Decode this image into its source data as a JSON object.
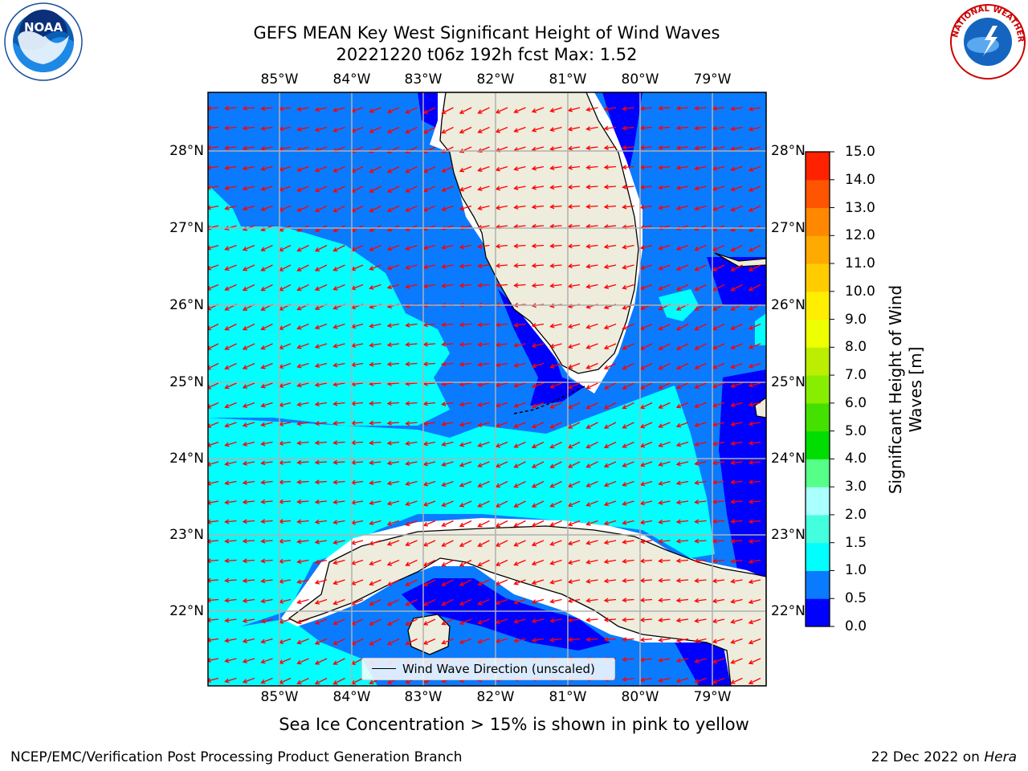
{
  "title": {
    "line1": "GEFS MEAN Key West Significant Height of Wind Waves",
    "line2": "20221220 t06z 192h fcst   Max: 1.52"
  },
  "map": {
    "lon_ticks": [
      "85°W",
      "84°W",
      "83°W",
      "82°W",
      "81°W",
      "80°W",
      "79°W"
    ],
    "lat_ticks": [
      "28°N",
      "27°N",
      "26°N",
      "25°N",
      "24°N",
      "23°N",
      "22°N"
    ],
    "land_color": "#eeecdc",
    "arrow_color": "#ff0000",
    "grid_color": "#b0b0b0"
  },
  "colorbar": {
    "label": "Significant Height of Wind Waves [m]",
    "ticks": [
      "15.0",
      "14.0",
      "13.0",
      "12.0",
      "11.0",
      "10.0",
      "9.0",
      "8.0",
      "7.0",
      "6.0",
      "5.0",
      "4.0",
      "3.0",
      "2.0",
      "1.5",
      "1.0",
      "0.5",
      "0.0"
    ],
    "colors_bottom_to_top": [
      "#0000ff",
      "#0a7bff",
      "#00ffff",
      "#44ffdd",
      "#aaffff",
      "#55ff88",
      "#00dd00",
      "#44e000",
      "#88ee00",
      "#bbee00",
      "#eeff00",
      "#ffee00",
      "#ffcc00",
      "#ffaa00",
      "#ff8800",
      "#ff5500",
      "#ff2200"
    ]
  },
  "legend": {
    "label": "Wind Wave Direction (unscaled)"
  },
  "sea_ice_note": "Sea Ice Concentration > 15% is shown in pink to yellow",
  "footer": {
    "left": "NCEP/EMC/Verification Post Processing Product Generation Branch",
    "right_date": "22 Dec 2022 on",
    "right_host": "Hera"
  },
  "logos": {
    "left": {
      "icon": "noaa-logo",
      "text": "NOAA"
    },
    "right": {
      "icon": "nws-logo",
      "text": "NATIONAL WEATHER SERVICE"
    }
  }
}
